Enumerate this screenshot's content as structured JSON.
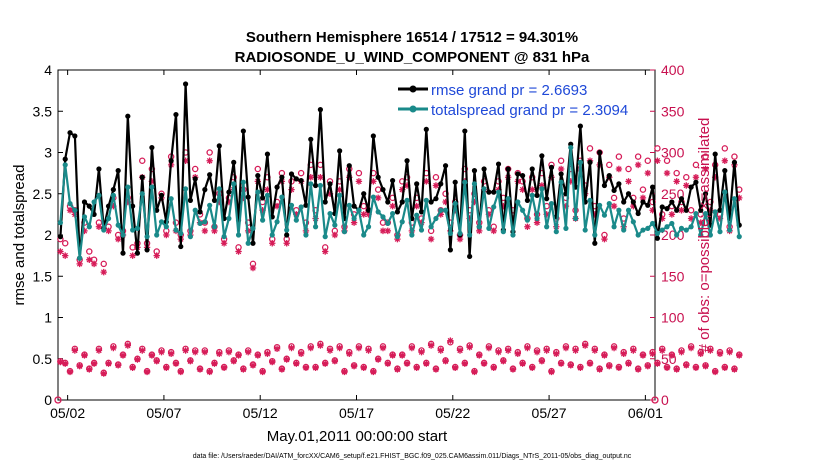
{
  "chart_data": {
    "type": "line",
    "title_line1": "Southern Hemisphere 16514 / 17512 = 94.301%",
    "title_line2": "RADIOSONDE_U_WIND_COMPONENT @ 831 hPa",
    "xlabel": "May.01,2011 00:00:00 start",
    "ylabel_left": "rmse and totalspread",
    "ylabel_right": "# of obs: o=possible; ×=assimilated",
    "ylim_left": [
      0,
      4
    ],
    "ylim_right": [
      0,
      400
    ],
    "yticks_left": [
      "0",
      "0.5",
      "1",
      "1.5",
      "2",
      "2.5",
      "3",
      "3.5",
      "4"
    ],
    "yticks_right": [
      "0",
      "50",
      "100",
      "150",
      "200",
      "250",
      "300",
      "350",
      "400"
    ],
    "xlim_days": [
      0.5,
      31.5
    ],
    "xticks": [
      {
        "day": 1,
        "label": "05/02"
      },
      {
        "day": 6,
        "label": "05/07"
      },
      {
        "day": 11,
        "label": "05/12"
      },
      {
        "day": 16,
        "label": "05/17"
      },
      {
        "day": 21,
        "label": "05/22"
      },
      {
        "day": 26,
        "label": "05/27"
      },
      {
        "day": 31,
        "label": "06/01"
      }
    ],
    "footnote": "data file: /Users/raeder/DAI/ATM_forcXX/CAM6_setup/f.e21.FHIST_BGC.f09_025.CAM6assim.011/Diags_NTrS_2011-05/obs_diag_output.nc",
    "x_start_day": 0.625,
    "x_step_day": 0.25,
    "series": [
      {
        "name": "rmse grand pr = 2.6693",
        "color": "#000000",
        "marker": "dot",
        "values": [
          1.98,
          2.92,
          3.24,
          3.2,
          1.72,
          2.4,
          2.35,
          2.25,
          2.8,
          2.08,
          2.35,
          2.55,
          2.78,
          1.78,
          3.44,
          2.35,
          1.78,
          2.7,
          1.82,
          3.06,
          2.3,
          2.48,
          2.16,
          2.9,
          3.46,
          1.86,
          3.83,
          2.42,
          2.68,
          2.28,
          2.55,
          2.73,
          2.42,
          3.08,
          2.2,
          2.52,
          2.88,
          2.18,
          3.26,
          2.46,
          1.9,
          2.72,
          2.45,
          2.98,
          2.22,
          2.58,
          2.7,
          2.0,
          2.74,
          2.68,
          2.66,
          2.36,
          3.16,
          2.6,
          3.52,
          2.4,
          2.62,
          2.26,
          3.02,
          2.2,
          2.84,
          2.35,
          2.3,
          2.5,
          2.3,
          3.2,
          2.7,
          2.55,
          2.4,
          2.66,
          2.28,
          2.4,
          2.9,
          2.2,
          2.62,
          2.28,
          3.28,
          2.4,
          2.44,
          2.62,
          2.84,
          1.82,
          2.64,
          2.0,
          3.26,
          1.74,
          2.78,
          2.1,
          2.8,
          2.52,
          2.52,
          2.86,
          2.06,
          2.8,
          2.04,
          2.74,
          2.72,
          2.42,
          2.8,
          2.48,
          2.96,
          2.44,
          2.82,
          2.22,
          2.74,
          2.5,
          3.1,
          2.58,
          3.32,
          2.4,
          2.88,
          1.9,
          3.0,
          2.6,
          2.72,
          2.54,
          2.62,
          2.4,
          2.5,
          2.4,
          2.26,
          2.4,
          2.36,
          2.58,
          1.96,
          2.34,
          2.32,
          2.4,
          2.3,
          2.44,
          2.3,
          2.58,
          2.64,
          2.3,
          2.5,
          2.12,
          2.98,
          2.3,
          2.78,
          2.2,
          2.88,
          2.12
        ]
      },
      {
        "name": "totalspread grand pr = 2.3094",
        "color": "#1a8a8a",
        "marker": "dot",
        "values": [
          2.15,
          2.85,
          2.38,
          2.3,
          1.72,
          2.22,
          2.1,
          2.4,
          2.48,
          2.06,
          2.2,
          2.48,
          2.12,
          2.0,
          2.58,
          2.06,
          2.08,
          2.5,
          1.98,
          2.58,
          2.0,
          2.16,
          2.1,
          2.44,
          2.06,
          2.02,
          2.56,
          1.98,
          2.3,
          2.14,
          2.16,
          2.36,
          2.1,
          2.56,
          1.98,
          2.2,
          2.62,
          2.0,
          2.64,
          1.9,
          2.08,
          2.52,
          2.18,
          2.48,
          2.0,
          2.16,
          2.46,
          2.06,
          2.36,
          2.18,
          2.34,
          2.0,
          2.62,
          2.1,
          2.6,
          1.98,
          2.26,
          2.12,
          2.48,
          2.04,
          2.36,
          2.2,
          2.3,
          2.0,
          2.1,
          2.46,
          2.28,
          2.22,
          2.14,
          2.26,
          1.98,
          2.16,
          2.42,
          2.0,
          2.24,
          2.06,
          2.42,
          2.1,
          2.2,
          2.3,
          2.3,
          2.02,
          2.38,
          2.02,
          2.64,
          2.0,
          2.62,
          2.1,
          2.56,
          2.08,
          2.34,
          2.52,
          2.04,
          2.44,
          2.0,
          2.4,
          2.3,
          2.18,
          2.48,
          2.2,
          2.56,
          2.1,
          2.38,
          2.04,
          2.64,
          2.08,
          3.06,
          2.2,
          2.88,
          2.06,
          2.42,
          2.0,
          2.36,
          2.24,
          2.38,
          2.1,
          2.3,
          2.06,
          2.3,
          2.16,
          2.0,
          2.06,
          2.08,
          2.14,
          2.02,
          2.06,
          2.1,
          2.14,
          2.0,
          2.08,
          2.06,
          2.1,
          2.26,
          2.0,
          2.26,
          2.0,
          2.28,
          2.04,
          2.52,
          2.06,
          2.44,
          1.98
        ]
      }
    ],
    "obs_possible_upper": [
      195,
      190,
      235,
      230,
      170,
      215,
      180,
      170,
      215,
      165,
      210,
      245,
      200,
      205,
      245,
      185,
      190,
      290,
      190,
      280,
      180,
      250,
      205,
      295,
      215,
      200,
      300,
      205,
      280,
      225,
      215,
      300,
      210,
      250,
      195,
      245,
      270,
      185,
      255,
      215,
      165,
      280,
      240,
      270,
      195,
      240,
      275,
      195,
      265,
      230,
      275,
      215,
      285,
      230,
      285,
      185,
      265,
      205,
      265,
      210,
      280,
      225,
      275,
      235,
      230,
      275,
      255,
      215,
      215,
      245,
      200,
      265,
      270,
      215,
      245,
      220,
      275,
      205,
      270,
      230,
      250,
      215,
      240,
      200,
      280,
      230,
      250,
      215,
      265,
      230,
      210,
      265,
      245,
      280,
      230,
      275,
      265,
      220,
      270,
      225,
      275,
      235,
      285,
      220,
      290,
      245,
      280,
      230,
      290,
      260,
      305,
      235,
      300,
      200,
      285,
      245,
      295,
      220,
      280,
      245,
      295,
      255,
      290,
      240,
      305,
      225,
      290,
      235,
      275,
      240,
      270,
      230,
      285,
      225,
      295,
      240,
      285,
      225,
      305,
      210,
      295,
      255
    ],
    "obs_assimilated_upper": [
      180,
      175,
      230,
      225,
      165,
      205,
      170,
      165,
      210,
      155,
      205,
      235,
      195,
      200,
      240,
      175,
      185,
      270,
      185,
      265,
      175,
      245,
      200,
      285,
      205,
      195,
      290,
      200,
      270,
      215,
      205,
      290,
      205,
      240,
      190,
      240,
      255,
      180,
      245,
      205,
      160,
      265,
      230,
      255,
      190,
      235,
      265,
      190,
      255,
      225,
      265,
      205,
      270,
      220,
      270,
      180,
      250,
      200,
      255,
      205,
      270,
      215,
      265,
      225,
      225,
      265,
      245,
      205,
      205,
      235,
      195,
      255,
      260,
      205,
      235,
      215,
      265,
      195,
      260,
      225,
      240,
      205,
      230,
      195,
      265,
      220,
      240,
      205,
      255,
      225,
      205,
      255,
      235,
      270,
      220,
      265,
      255,
      210,
      255,
      215,
      260,
      225,
      270,
      210,
      280,
      235,
      265,
      220,
      280,
      250,
      290,
      225,
      285,
      195,
      270,
      235,
      280,
      210,
      265,
      235,
      285,
      245,
      275,
      230,
      290,
      220,
      275,
      225,
      265,
      230,
      260,
      220,
      270,
      215,
      280,
      230,
      270,
      220,
      290,
      205,
      285,
      245
    ],
    "obs_possible_lower": [
      47,
      45,
      35,
      62,
      42,
      55,
      38,
      45,
      62,
      33,
      45,
      65,
      43,
      55,
      68,
      40,
      50,
      62,
      35,
      55,
      48,
      60,
      40,
      58,
      45,
      35,
      62,
      48,
      60,
      38,
      60,
      35,
      45,
      58,
      40,
      60,
      48,
      55,
      38,
      60,
      43,
      55,
      35,
      58,
      47,
      64,
      38,
      50,
      65,
      45,
      58,
      40,
      65,
      40,
      68,
      45,
      62,
      48,
      65,
      35,
      58,
      42,
      65,
      40,
      62,
      35,
      50,
      65,
      45,
      55,
      38,
      55,
      45,
      65,
      40,
      60,
      45,
      68,
      38,
      62,
      48,
      70,
      40,
      62,
      45,
      66,
      35,
      55,
      45,
      65,
      40,
      60,
      48,
      62,
      38,
      58,
      45,
      65,
      40,
      60,
      48,
      62,
      35,
      58,
      45,
      65,
      43,
      62,
      40,
      68,
      45,
      62,
      38,
      55,
      42,
      65,
      40,
      58,
      45,
      62,
      38,
      55,
      42,
      58,
      45,
      62,
      40,
      55,
      38,
      60,
      43,
      65,
      40,
      58,
      42,
      62,
      35,
      58,
      40,
      60,
      38,
      55
    ],
    "obs_assimilated_lower": [
      46,
      44,
      34,
      60,
      41,
      54,
      37,
      44,
      60,
      32,
      44,
      63,
      42,
      54,
      66,
      39,
      49,
      60,
      34,
      54,
      47,
      58,
      39,
      56,
      44,
      34,
      60,
      47,
      58,
      37,
      58,
      34,
      44,
      56,
      39,
      58,
      47,
      54,
      37,
      58,
      42,
      54,
      34,
      56,
      46,
      62,
      37,
      49,
      63,
      44,
      56,
      39,
      63,
      39,
      66,
      44,
      60,
      47,
      63,
      34,
      56,
      41,
      63,
      39,
      60,
      34,
      49,
      63,
      44,
      54,
      37,
      54,
      44,
      63,
      39,
      58,
      44,
      66,
      37,
      60,
      47,
      72,
      39,
      60,
      44,
      64,
      34,
      54,
      44,
      63,
      39,
      58,
      47,
      60,
      37,
      56,
      44,
      63,
      39,
      58,
      47,
      60,
      34,
      56,
      44,
      63,
      42,
      60,
      39,
      66,
      44,
      60,
      37,
      54,
      41,
      63,
      39,
      56,
      44,
      60,
      37,
      54,
      41,
      56,
      44,
      60,
      39,
      54,
      37,
      58,
      42,
      63,
      39,
      56,
      41,
      60,
      34,
      56,
      39,
      58,
      37,
      54
    ],
    "obs_color": "#d61c58"
  }
}
